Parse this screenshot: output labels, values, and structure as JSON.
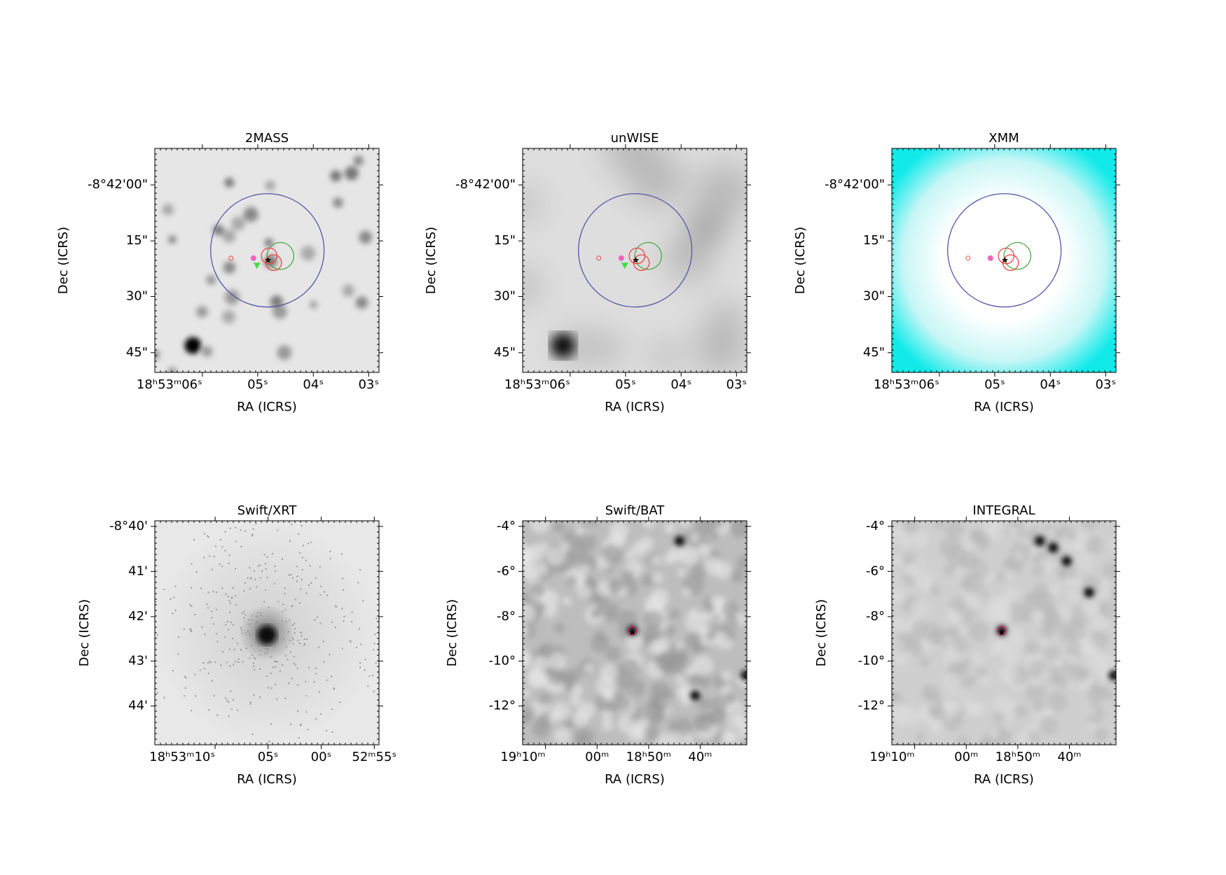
{
  "panels": [
    {
      "title": "2MASS",
      "xlabel": "RA (ICRS)",
      "ylabel": "Dec (ICRS)",
      "xticks": [
        "18ʰ53ᵐ06ˢ",
        "05ˢ",
        "04ˢ",
        "03ˢ"
      ],
      "yticks": [
        "-8°42'00\"",
        "15\"",
        "30\"",
        "45\""
      ]
    },
    {
      "title": "unWISE",
      "xlabel": "RA (ICRS)",
      "ylabel": "Dec (ICRS)",
      "xticks": [
        "18ʰ53ᵐ06ˢ",
        "05ˢ",
        "04ˢ",
        "03ˢ"
      ],
      "yticks": [
        "-8°42'00\"",
        "15\"",
        "30\"",
        "45\""
      ]
    },
    {
      "title": "XMM",
      "xlabel": "RA (ICRS)",
      "ylabel": "Dec (ICRS)",
      "xticks": [
        "18ʰ53ᵐ06ˢ",
        "05ˢ",
        "04ˢ",
        "03ˢ"
      ],
      "yticks": [
        "-8°42'00\"",
        "15\"",
        "30\"",
        "45\""
      ]
    },
    {
      "title": "Swift/XRT",
      "xlabel": "RA (ICRS)",
      "ylabel": "Dec (ICRS)",
      "xticks": [
        "18ʰ53ᵐ10ˢ",
        "05ˢ",
        "00ˢ",
        "52ᵐ55ˢ"
      ],
      "yticks": [
        "-8°40'",
        "41'",
        "42'",
        "43'",
        "44'"
      ]
    },
    {
      "title": "Swift/BAT",
      "xlabel": "RA (ICRS)",
      "ylabel": "Dec (ICRS)",
      "xticks": [
        "19ʰ10ᵐ",
        "00ᵐ",
        "18ʰ50ᵐ",
        "40ᵐ"
      ],
      "yticks": [
        "-4°",
        "-6°",
        "-8°",
        "-10°",
        "-12°"
      ]
    },
    {
      "title": "INTEGRAL",
      "xlabel": "RA (ICRS)",
      "ylabel": "Dec (ICRS)",
      "xticks": [
        "19ʰ10ᵐ",
        "00ᵐ",
        "18ʰ50ᵐ",
        "40ᵐ"
      ],
      "yticks": [
        "-4°",
        "-6°",
        "-8°",
        "-10°",
        "-12°"
      ]
    }
  ]
}
